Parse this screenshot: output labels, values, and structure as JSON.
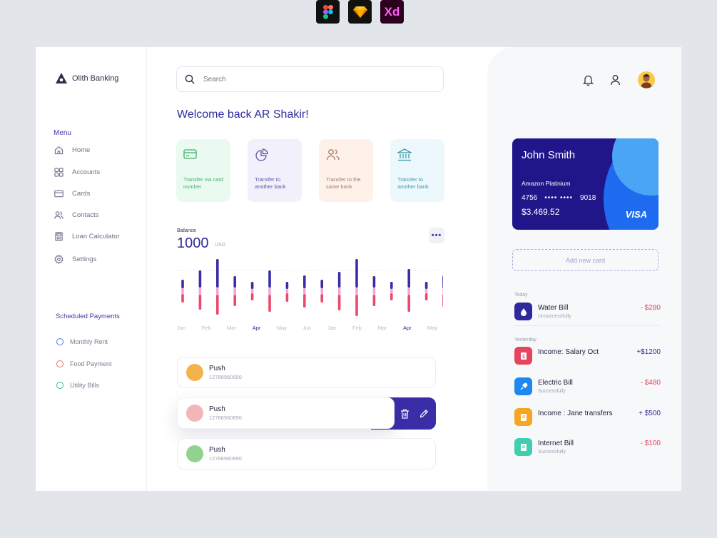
{
  "tools": [
    "figma-icon",
    "sketch-icon",
    "Xd"
  ],
  "brand": {
    "name": "Olith Banking"
  },
  "menu": {
    "title": "Menu",
    "items": [
      {
        "label": "Home",
        "icon": "home-icon"
      },
      {
        "label": "Accounts",
        "icon": "grid-icon"
      },
      {
        "label": "Cards",
        "icon": "card-icon"
      },
      {
        "label": "Contacts",
        "icon": "users-icon"
      },
      {
        "label": "Loan Calculator",
        "icon": "calculator-icon"
      },
      {
        "label": "Settings",
        "icon": "gear-icon"
      }
    ]
  },
  "scheduled": {
    "title": "Scheduled Payments",
    "items": [
      {
        "label": "Monthly Rent",
        "color": "#4b7bea"
      },
      {
        "label": "Food Payment",
        "color": "#ef6f6f"
      },
      {
        "label": "Utility Bills",
        "color": "#2fb9a7"
      }
    ]
  },
  "search": {
    "placeholder": "Search"
  },
  "welcome": "Welcome back AR Shakir!",
  "quick_actions": [
    {
      "label": "Transfer via card number",
      "bg": "#eafaf0",
      "fg": "#3fae6a"
    },
    {
      "label": "Transfer to another bank",
      "bg": "#f1f0fb",
      "fg": "#5a55a8"
    },
    {
      "label": "Transfer to the same bank",
      "bg": "#fdf1ea",
      "fg": "#a67a64"
    },
    {
      "label": "Transfer to another bank",
      "bg": "#ecf8fb",
      "fg": "#3a97ad"
    }
  ],
  "balance": {
    "label": "Balance",
    "value": "1000",
    "unit": "USD"
  },
  "chart_data": {
    "type": "bar",
    "categories": [
      "Jan",
      "Feb",
      "Mar",
      "Apr",
      "May",
      "Jun",
      "Jan",
      "Feb",
      "Mar",
      "Apr",
      "May"
    ],
    "highlighted": [
      "Apr"
    ],
    "colors": {
      "top": "#3a2ea8",
      "middle": "#f0a7d8",
      "bottom": "#ec4a6d"
    },
    "bars": [
      {
        "top": 12,
        "mid": 8,
        "bottom": 12
      },
      {
        "top": 24,
        "mid": 10,
        "bottom": 21
      },
      {
        "top": 40,
        "mid": 10,
        "bottom": 28
      },
      {
        "top": 16,
        "mid": 10,
        "bottom": 16
      },
      {
        "top": 10,
        "mid": 6,
        "bottom": 10
      },
      {
        "top": 24,
        "mid": 10,
        "bottom": 24
      },
      {
        "top": 10,
        "mid": 6,
        "bottom": 12
      },
      {
        "top": 18,
        "mid": 8,
        "bottom": 19
      },
      {
        "top": 12,
        "mid": 8,
        "bottom": 12
      },
      {
        "top": 22,
        "mid": 10,
        "bottom": 22
      },
      {
        "top": 40,
        "mid": 10,
        "bottom": 30
      },
      {
        "top": 16,
        "mid": 10,
        "bottom": 16
      },
      {
        "top": 10,
        "mid": 6,
        "bottom": 10
      },
      {
        "top": 26,
        "mid": 10,
        "bottom": 24
      },
      {
        "top": 10,
        "mid": 6,
        "bottom": 10
      },
      {
        "top": 18,
        "mid": 8,
        "bottom": 18
      }
    ]
  },
  "contacts": [
    {
      "name": "Push",
      "number": "12788980890",
      "avatar": "#f3b24b"
    },
    {
      "name": "Push",
      "number": "12788980890",
      "avatar": "#f2b6b8"
    },
    {
      "name": "Push",
      "number": "12788980890",
      "avatar": "#8fd38f"
    }
  ],
  "card": {
    "holder": "John Smith",
    "tier": "Amazon Platinium",
    "number_start": "4756",
    "number_mask": "•••• ••••",
    "number_end": "9018",
    "balance": "$3.469.52",
    "network": "VISA"
  },
  "add_card": "Add new card",
  "transactions": {
    "groups": [
      {
        "day": "Today",
        "items": [
          {
            "name": "Water Bill",
            "status": "Unsuccessfully",
            "amount": "- $280",
            "color": "#2f2a9c",
            "amount_color": "#e6445f"
          }
        ]
      },
      {
        "day": "Yesterday",
        "items": [
          {
            "name": "Income: Salary Oct",
            "status": "",
            "amount": "+$1200",
            "color": "#e6445f",
            "amount_color": "#2f2a9c"
          },
          {
            "name": "Electric Bill",
            "status": "Successfully",
            "amount": "- $480",
            "color": "#1e88f0",
            "amount_color": "#e6445f"
          },
          {
            "name": "Income : Jane transfers",
            "status": "",
            "amount": "+ $500",
            "color": "#f6a623",
            "amount_color": "#2f2a9c"
          },
          {
            "name": "Internet Bill",
            "status": "Successfully",
            "amount": "- $100",
            "color": "#3fcfb0",
            "amount_color": "#e6445f"
          }
        ]
      }
    ]
  }
}
